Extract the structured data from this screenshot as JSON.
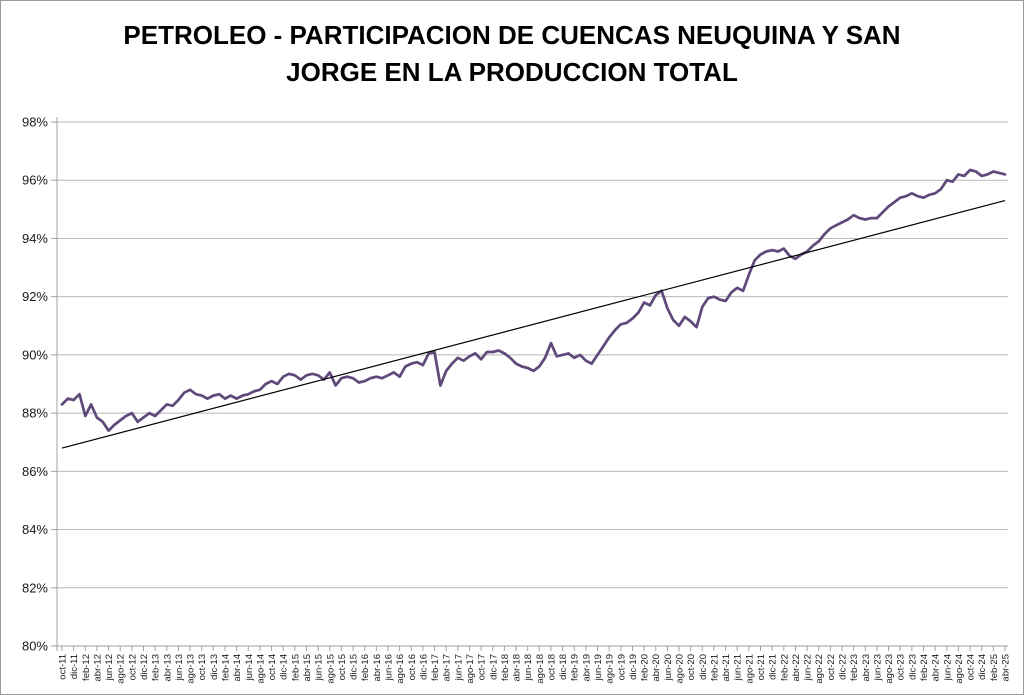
{
  "chart_data": {
    "type": "line",
    "title_lines": [
      "PETROLEO - PARTICIPACION DE CUENCAS NEUQUINA Y SAN",
      "JORGE EN LA PRODUCCION TOTAL"
    ],
    "xlabel": "",
    "ylabel": "",
    "ylim": [
      80,
      98
    ],
    "y_tick_step": 2,
    "y_tick_labels": [
      "80%",
      "82%",
      "84%",
      "86%",
      "88%",
      "90%",
      "92%",
      "94%",
      "96%",
      "98%"
    ],
    "grid": true,
    "legend_position": "none",
    "x_label_every_n_points": 2,
    "x_tick_labels": [
      "oct-11",
      "dic-11",
      "feb-12",
      "abr-12",
      "jun-12",
      "ago-12",
      "oct-12",
      "dic-12",
      "feb-13",
      "abr-13",
      "jun-13",
      "ago-13",
      "oct-13",
      "dic-13",
      "feb-14",
      "abr-14",
      "jun-14",
      "ago-14",
      "oct-14",
      "dic-14",
      "feb-15",
      "abr-15",
      "jun-15",
      "ago-15",
      "oct-15",
      "dic-15",
      "feb-16",
      "abr-16",
      "jun-16",
      "ago-16",
      "oct-16",
      "dic-16",
      "feb-17",
      "abr-17",
      "jun-17",
      "ago-17",
      "oct-17",
      "dic-17",
      "feb-18",
      "abr-18",
      "jun-18",
      "ago-18",
      "oct-18",
      "dic-18",
      "feb-19",
      "abr-19",
      "jun-19",
      "ago-19",
      "oct-19",
      "dic-19",
      "feb-20",
      "abr-20",
      "jun-20",
      "ago-20",
      "oct-20",
      "dic-20",
      "feb-21",
      "abr-21",
      "jun-21",
      "ago-21",
      "oct-21",
      "dic-21",
      "feb-22",
      "abr-22",
      "jun-22",
      "ago-22",
      "oct-22",
      "dic-22",
      "feb-23",
      "abr-23",
      "jun-23",
      "ago-23",
      "oct-23",
      "dic-23",
      "feb-24",
      "abr-24",
      "jun-24",
      "ago-24",
      "oct-24",
      "dic-24",
      "feb-25",
      "abr-25"
    ],
    "series": [
      {
        "name": "participacion-cuencas",
        "color": "#604A7B",
        "period": "monthly, oct-2011 to abr-2025",
        "values": [
          88.3,
          88.5,
          88.45,
          88.65,
          87.9,
          88.3,
          87.85,
          87.7,
          87.4,
          87.6,
          87.75,
          87.9,
          88.0,
          87.7,
          87.85,
          88.0,
          87.9,
          88.1,
          88.3,
          88.25,
          88.45,
          88.7,
          88.8,
          88.65,
          88.6,
          88.5,
          88.6,
          88.65,
          88.5,
          88.6,
          88.5,
          88.6,
          88.65,
          88.75,
          88.8,
          89.0,
          89.1,
          89.0,
          89.25,
          89.35,
          89.3,
          89.15,
          89.3,
          89.35,
          89.3,
          89.15,
          89.4,
          88.95,
          89.2,
          89.25,
          89.2,
          89.05,
          89.1,
          89.2,
          89.25,
          89.2,
          89.3,
          89.4,
          89.25,
          89.6,
          89.7,
          89.75,
          89.65,
          90.05,
          90.1,
          88.95,
          89.45,
          89.7,
          89.9,
          89.8,
          89.95,
          90.05,
          89.85,
          90.1,
          90.1,
          90.15,
          90.05,
          89.9,
          89.7,
          89.6,
          89.55,
          89.45,
          89.6,
          89.9,
          90.4,
          89.95,
          90.0,
          90.05,
          89.9,
          90.0,
          89.8,
          89.7,
          90.0,
          90.3,
          90.6,
          90.85,
          91.05,
          91.1,
          91.25,
          91.45,
          91.8,
          91.7,
          92.05,
          92.2,
          91.6,
          91.2,
          91.0,
          91.3,
          91.15,
          90.95,
          91.65,
          91.95,
          92.0,
          91.9,
          91.85,
          92.15,
          92.3,
          92.2,
          92.75,
          93.25,
          93.45,
          93.55,
          93.6,
          93.55,
          93.65,
          93.4,
          93.3,
          93.45,
          93.55,
          93.75,
          93.9,
          94.15,
          94.35,
          94.45,
          94.55,
          94.65,
          94.8,
          94.7,
          94.65,
          94.7,
          94.7,
          94.9,
          95.1,
          95.25,
          95.4,
          95.45,
          95.55,
          95.45,
          95.4,
          95.5,
          95.55,
          95.7,
          96.0,
          95.95,
          96.2,
          96.15,
          96.35,
          96.3,
          96.15,
          96.2,
          96.3,
          96.25,
          96.2
        ]
      },
      {
        "name": "tendencia-lineal",
        "color": "#000000",
        "trend_start": 86.8,
        "trend_end": 95.3
      }
    ],
    "colors": {
      "series_line": "#604A7B",
      "trend_line": "#000000",
      "gridline": "#b9b9b9",
      "axis": "#a3a3a3",
      "tick_label": "#1a1a1a",
      "title": "#000000",
      "background": "#ffffff"
    }
  }
}
